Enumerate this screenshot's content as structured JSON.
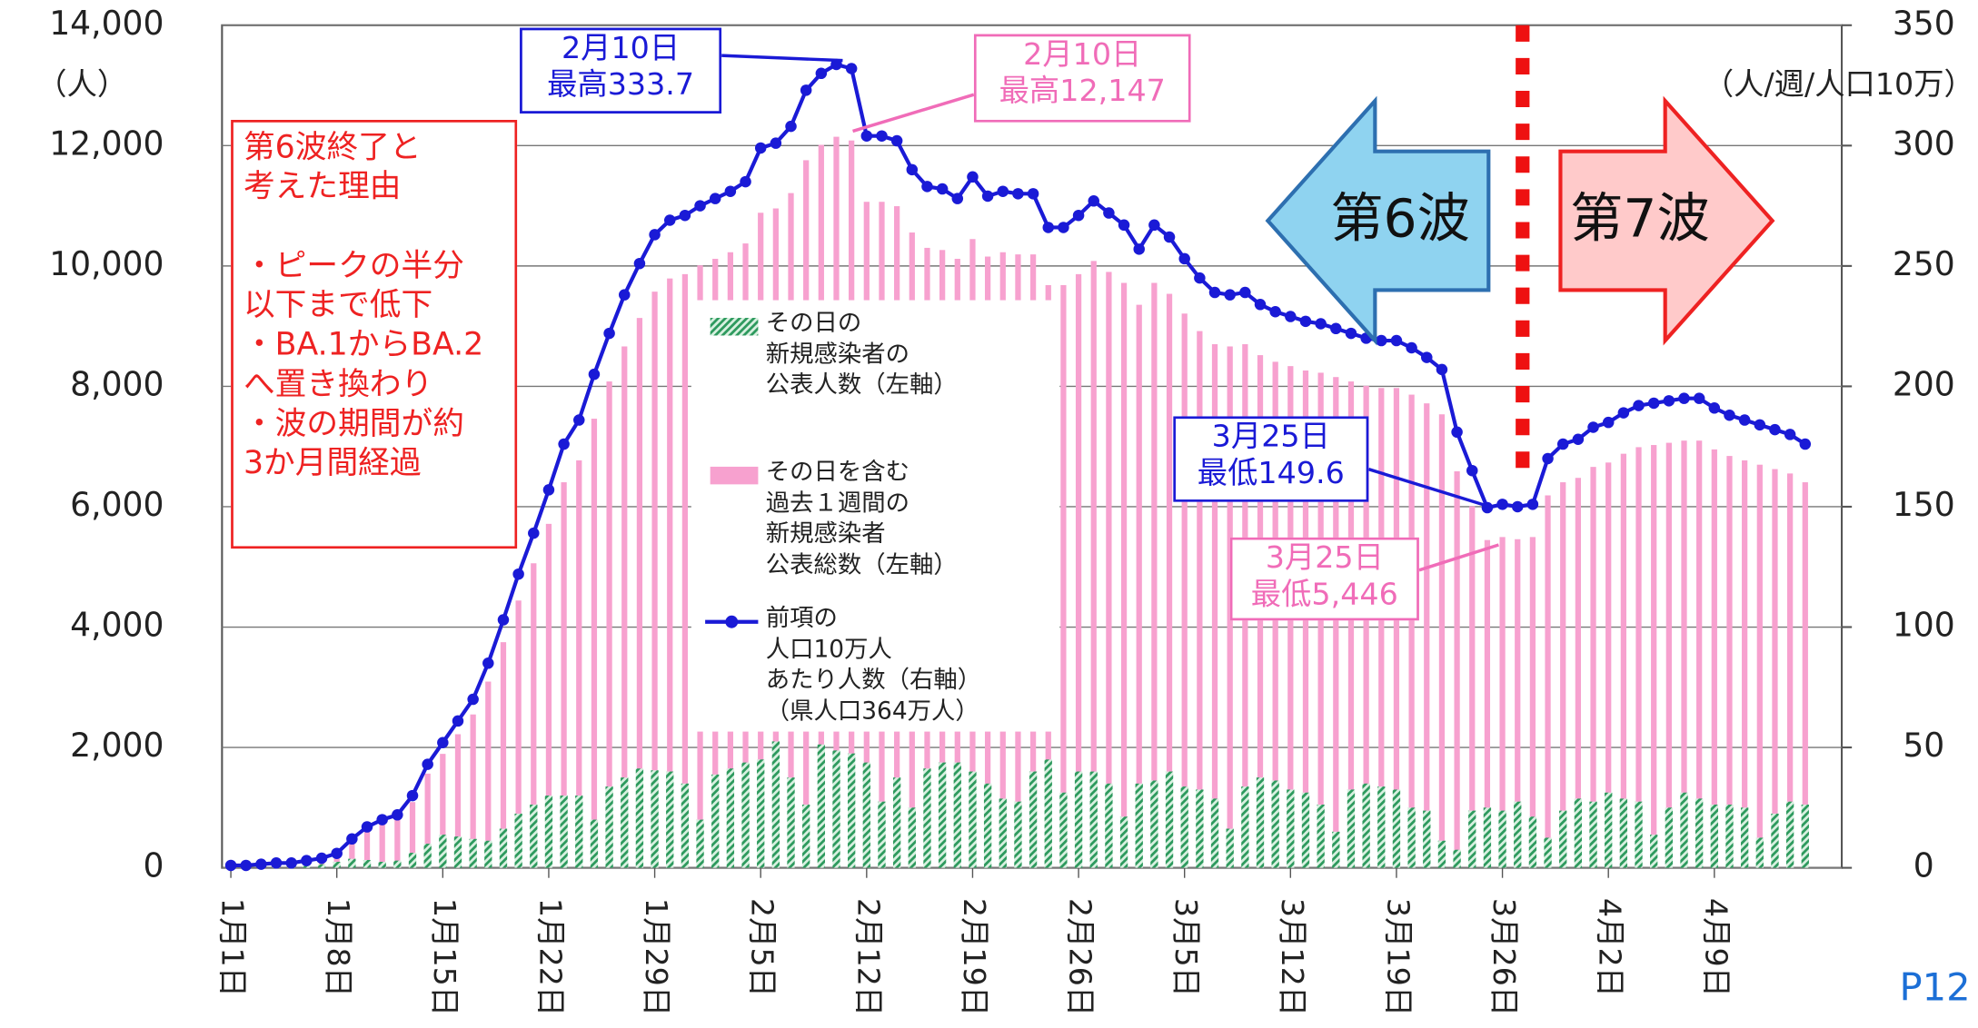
{
  "chart_data": {
    "type": "bar",
    "categories": [
      "1月1日",
      null,
      null,
      null,
      null,
      null,
      null,
      "1月8日",
      null,
      null,
      null,
      null,
      null,
      null,
      "1月15日",
      null,
      null,
      null,
      null,
      null,
      null,
      "1月22日",
      null,
      null,
      null,
      null,
      null,
      null,
      "1月29日",
      null,
      null,
      null,
      null,
      null,
      null,
      "2月5日",
      null,
      null,
      null,
      null,
      null,
      null,
      "2月12日",
      null,
      null,
      null,
      null,
      null,
      null,
      "2月19日",
      null,
      null,
      null,
      null,
      null,
      null,
      "2月26日",
      null,
      null,
      null,
      null,
      null,
      null,
      "3月5日",
      null,
      null,
      null,
      null,
      null,
      null,
      "3月12日",
      null,
      null,
      null,
      null,
      null,
      null,
      "3月19日",
      null,
      null,
      null,
      null,
      null,
      null,
      "3月26日",
      null,
      null,
      null,
      null,
      null,
      null,
      "4月2日",
      null,
      null,
      null,
      null,
      null,
      null,
      "4月9日",
      null,
      null,
      null,
      null,
      null,
      null
    ],
    "series": [
      {
        "name": "その日の\n新規感染者の\n公表人数（左軸）",
        "type": "bar",
        "color": "#2e9a5e",
        "values": [
          10,
          15,
          20,
          25,
          30,
          40,
          60,
          100,
          150,
          130,
          100,
          120,
          250,
          400,
          550,
          520,
          480,
          450,
          650,
          900,
          1050,
          1200,
          1200,
          1200,
          800,
          1350,
          1500,
          1650,
          1620,
          1600,
          1400,
          800,
          1550,
          1650,
          1750,
          1800,
          2100,
          1500,
          1050,
          2050,
          1950,
          1900,
          1750,
          1100,
          1500,
          1000,
          1650,
          1750,
          1750,
          1600,
          1400,
          1150,
          1100,
          1600,
          1800,
          1250,
          1600,
          1600,
          1400,
          850,
          1400,
          1450,
          1600,
          1350,
          1300,
          1150,
          650,
          1350,
          1500,
          1450,
          1300,
          1250,
          1050,
          600,
          1300,
          1400,
          1350,
          1300,
          1000,
          950,
          450,
          300,
          950,
          1000,
          950,
          1100,
          850,
          500,
          950,
          1150,
          1100,
          1250,
          1150,
          1100,
          550,
          1000,
          1250,
          1150,
          1050,
          1050,
          1000,
          500,
          900,
          1100,
          1050
        ]
      },
      {
        "name": "その日を含む\n過去１週間の\n新規感染者\n公表総数（左軸）",
        "type": "bar",
        "color": "#f7a1cf",
        "values": [
          36,
          36,
          55,
          73,
          73,
          109,
          146,
          218,
          437,
          619,
          728,
          801,
          1092,
          1565,
          1893,
          2220,
          2548,
          3094,
          3749,
          4441,
          5060,
          5715,
          6406,
          6770,
          7462,
          8081,
          8663,
          9136,
          9573,
          9792,
          9864,
          10010,
          10119,
          10228,
          10374,
          10884,
          10956,
          11211,
          11757,
          12012,
          12147,
          12085,
          11066,
          11066,
          10993,
          10556,
          10301,
          10265,
          10119,
          10447,
          10156,
          10228,
          10192,
          10192,
          9682,
          9682,
          9864,
          10083,
          9901,
          9719,
          9355,
          9719,
          9537,
          9209,
          8918,
          8700,
          8663,
          8700,
          8518,
          8408,
          8336,
          8263,
          8226,
          8154,
          8081,
          8008,
          7972,
          7972,
          7862,
          7717,
          7535,
          6588,
          6006,
          5446,
          5496,
          5460,
          5496,
          6188,
          6406,
          6479,
          6661,
          6734,
          6880,
          6989,
          7025,
          7062,
          7098,
          7098,
          6952,
          6843,
          6770,
          6698,
          6625,
          6552,
          6406
        ]
      },
      {
        "name": "前項の\n人口10万人\nあたり人数（右軸）\n（県人口364万人）",
        "type": "line",
        "axis": "y2",
        "color": "#1a1ad6",
        "values": [
          1,
          1,
          1.5,
          2,
          2,
          3,
          4,
          6,
          12,
          17,
          20,
          22,
          30,
          43,
          52,
          61,
          70,
          85,
          103,
          122,
          139,
          157,
          176,
          186,
          205,
          222,
          238,
          251,
          263,
          269,
          271,
          275,
          278,
          281,
          285,
          299,
          301,
          308,
          323,
          330,
          333.7,
          332,
          304,
          304,
          302,
          290,
          283,
          282,
          278,
          287,
          279,
          281,
          280,
          280,
          266,
          266,
          271,
          277,
          272,
          267,
          257,
          267,
          262,
          253,
          245,
          239,
          238,
          239,
          234,
          231,
          229,
          227,
          226,
          224,
          222,
          220,
          219,
          219,
          216,
          212,
          207,
          181,
          165,
          149.6,
          151,
          150,
          151,
          170,
          176,
          178,
          183,
          185,
          189,
          192,
          193,
          194,
          195,
          195,
          191,
          188,
          186,
          184,
          182,
          180,
          176
        ]
      }
    ],
    "ylim": [
      0,
      14000
    ],
    "yticks": [
      0,
      {
        "value": 2000,
        "label": "2,000"
      },
      {
        "value": 4000,
        "label": "4,000"
      },
      {
        "value": 6000,
        "label": "6,000"
      },
      {
        "value": 8000,
        "label": "8,000"
      },
      {
        "value": 10000,
        "label": "10,000"
      },
      {
        "value": 12000,
        "label": "12,000"
      },
      {
        "value": 14000,
        "label": "14,000"
      }
    ],
    "y2lim": [
      0,
      350
    ],
    "y2ticks": [
      0,
      50,
      100,
      150,
      200,
      250,
      300,
      350
    ],
    "ylabel": "（人）",
    "y2label": "（人/週/人口10万）",
    "grid": true,
    "annotations": [
      "2月10日\n最高333.7",
      "2月10日\n最高12,147",
      "3月25日\n最低149.6",
      "3月25日\n最低5,446",
      "第6波終了と\n考えた理由\n\n・ピークの半分\n以下まで低下\n・BA.1からBA.2\nへ置き換わり\n・波の期間が約\n3か月間経過",
      "第6波",
      "第7波"
    ]
  },
  "page_label": "P12"
}
